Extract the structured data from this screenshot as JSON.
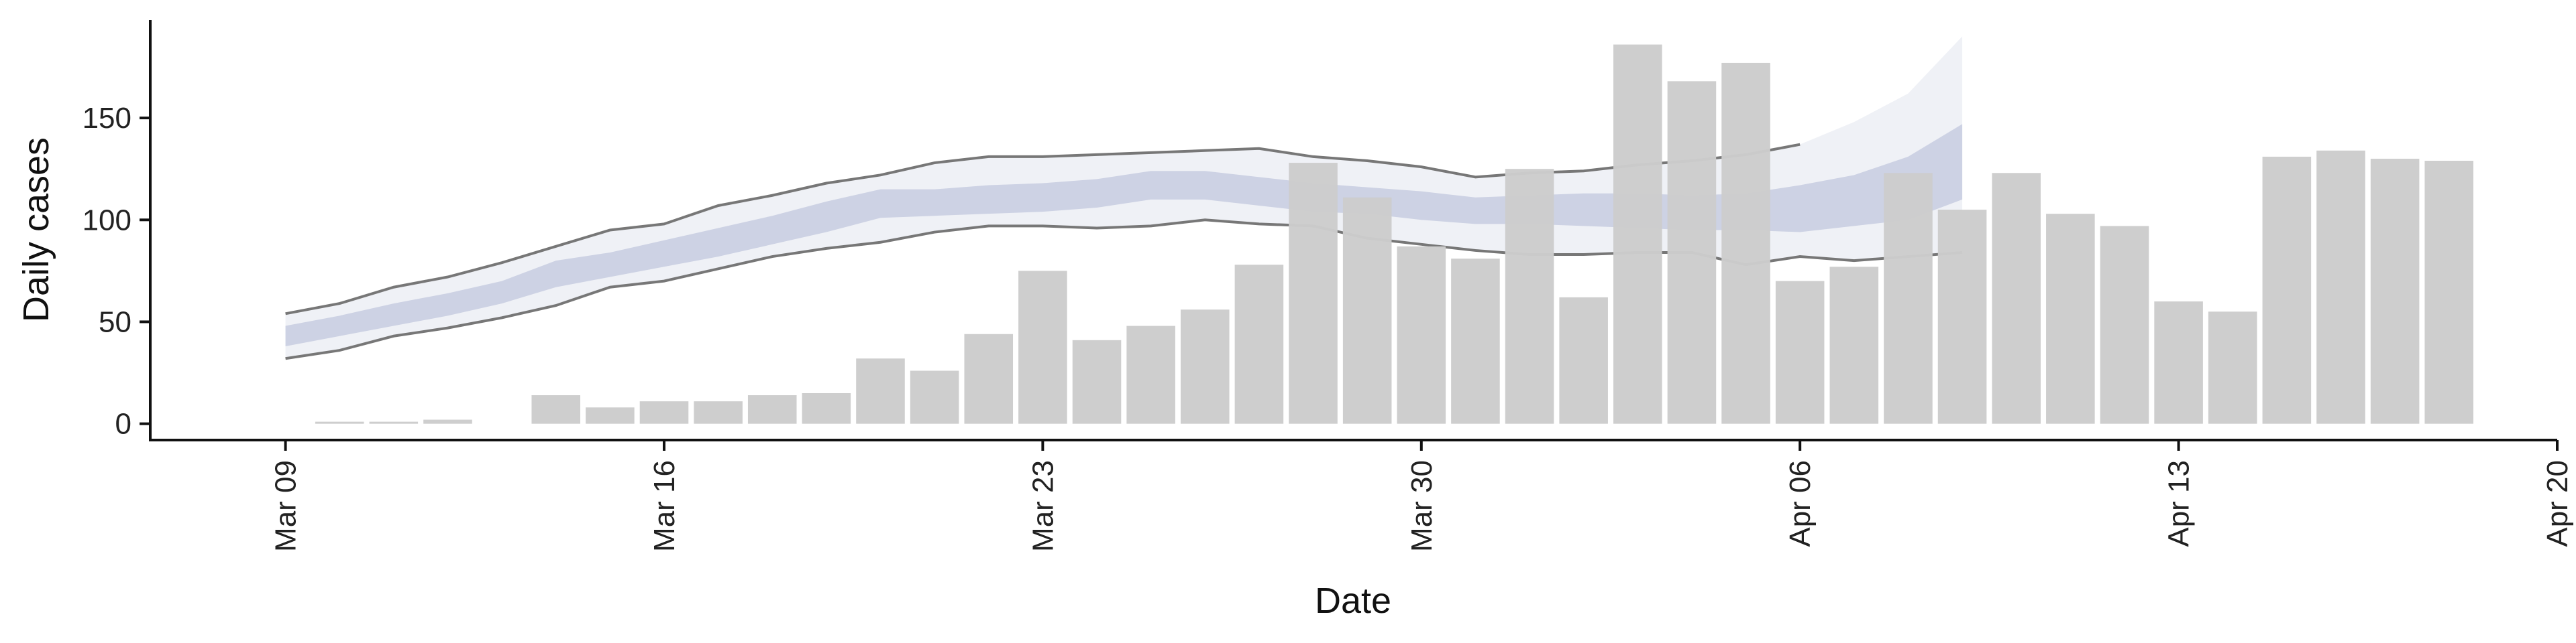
{
  "chart_data": {
    "type": "bar",
    "xlabel": "Date",
    "ylabel": "Daily cases",
    "x_ticks": [
      "Mar 09",
      "Mar 16",
      "Mar 23",
      "Mar 30",
      "Apr 06",
      "Apr 13",
      "Apr 20"
    ],
    "y_ticks": [
      0,
      50,
      100,
      150
    ],
    "ylim": [
      -8,
      198
    ],
    "xlim_days": [
      -2.5,
      42
    ],
    "grid": false,
    "legend": "none",
    "colors": {
      "bars": "#cccccc",
      "outer_band": "#b8bdd6",
      "inner_band": "#b8bfd8",
      "band_edge_line": "#777777",
      "axis": "#111111"
    },
    "bars": {
      "start_day": 0,
      "values": [
        0,
        1,
        1,
        2,
        0,
        14,
        8,
        11,
        11,
        14,
        15,
        32,
        26,
        44,
        75,
        41,
        48,
        56,
        78,
        128,
        111,
        87,
        81,
        125,
        62,
        186,
        168,
        177,
        70,
        77,
        123,
        105,
        123,
        103,
        97,
        60,
        55,
        131,
        134,
        130,
        129
      ]
    },
    "forecast": {
      "start_day": 0,
      "outer_upper": [
        54,
        59,
        67,
        72,
        79,
        87,
        95,
        98,
        107,
        112,
        118,
        122,
        128,
        131,
        131,
        132,
        133,
        134,
        135,
        131,
        129,
        126,
        121,
        123,
        124,
        127,
        129,
        132,
        137,
        148,
        162,
        190
      ],
      "outer_lower": [
        32,
        36,
        43,
        47,
        52,
        58,
        67,
        70,
        76,
        82,
        86,
        89,
        94,
        97,
        97,
        96,
        97,
        100,
        98,
        97,
        91,
        88,
        85,
        83,
        83,
        84,
        84,
        78,
        82,
        80,
        82,
        84
      ],
      "inner_upper": [
        48,
        53,
        59,
        64,
        70,
        80,
        84,
        90,
        96,
        102,
        109,
        115,
        115,
        117,
        118,
        120,
        124,
        124,
        121,
        118,
        116,
        114,
        111,
        112,
        113,
        113,
        112,
        113,
        117,
        122,
        131,
        147
      ],
      "inner_lower": [
        38,
        43,
        48,
        53,
        59,
        67,
        72,
        77,
        82,
        88,
        94,
        101,
        102,
        103,
        104,
        106,
        110,
        110,
        107,
        104,
        103,
        100,
        98,
        98,
        97,
        96,
        95,
        95,
        94,
        97,
        100,
        110
      ]
    }
  }
}
